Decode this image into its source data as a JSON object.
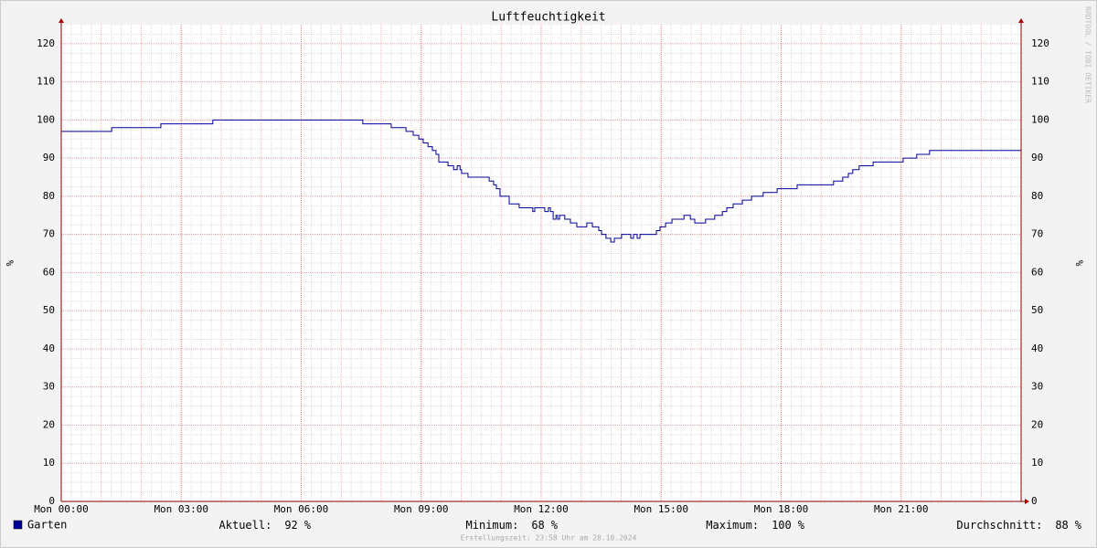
{
  "chart_data": {
    "type": "line",
    "title": "Luftfeuchtigkeit",
    "ylabel": "%",
    "step": true,
    "x": [
      0,
      1.26,
      2.49,
      3.79,
      7.54,
      8.25,
      8.62,
      8.8,
      8.94,
      9.05,
      9.17,
      9.28,
      9.37,
      9.44,
      9.67,
      9.81,
      9.9,
      9.97,
      10.01,
      10.17,
      10.7,
      10.81,
      10.88,
      10.97,
      11.2,
      11.45,
      11.79,
      11.84,
      12.09,
      12.18,
      12.23,
      12.3,
      12.37,
      12.41,
      12.46,
      12.59,
      12.73,
      12.89,
      13.14,
      13.28,
      13.44,
      13.51,
      13.62,
      13.74,
      13.83,
      14.01,
      14.24,
      14.31,
      14.4,
      14.47,
      14.88,
      14.97,
      15.11,
      15.27,
      15.57,
      15.73,
      15.84,
      16.11,
      16.34,
      16.53,
      16.64,
      16.8,
      17.03,
      17.26,
      17.55,
      17.9,
      18.4,
      19.31,
      19.54,
      19.68,
      19.79,
      19.95,
      20.3,
      21.05,
      21.39,
      21.71,
      24
    ],
    "series": [
      {
        "name": "Garten",
        "color": "#000099",
        "values": [
          97,
          98,
          99,
          100,
          99,
          98,
          97,
          96,
          95,
          94,
          93,
          92,
          91,
          89,
          88,
          87,
          88,
          87,
          86,
          85,
          84,
          83,
          82,
          80,
          78,
          77,
          76,
          77,
          76,
          77,
          76,
          74,
          75,
          74,
          75,
          74,
          73,
          72,
          73,
          72,
          71,
          70,
          69,
          68,
          69,
          70,
          69,
          70,
          69,
          70,
          71,
          72,
          73,
          74,
          75,
          74,
          73,
          74,
          75,
          76,
          77,
          78,
          79,
          80,
          81,
          82,
          83,
          84,
          85,
          86,
          87,
          88,
          89,
          90,
          91,
          92,
          92
        ]
      }
    ],
    "xlim": [
      0,
      24
    ],
    "xticks": [
      {
        "value": 0,
        "label": "Mon 00:00"
      },
      {
        "value": 3,
        "label": "Mon 03:00"
      },
      {
        "value": 6,
        "label": "Mon 06:00"
      },
      {
        "value": 9,
        "label": "Mon 09:00"
      },
      {
        "value": 12,
        "label": "Mon 12:00"
      },
      {
        "value": 15,
        "label": "Mon 15:00"
      },
      {
        "value": 18,
        "label": "Mon 18:00"
      },
      {
        "value": 21,
        "label": "Mon 21:00"
      }
    ],
    "ylim": [
      0,
      125
    ],
    "yticks": [
      0,
      10,
      20,
      30,
      40,
      50,
      60,
      70,
      80,
      90,
      100,
      110,
      120
    ],
    "grid": true,
    "stats": [
      {
        "label": "Aktuell:",
        "value": 92,
        "unit": "%"
      },
      {
        "label": "Minimum:",
        "value": 68,
        "unit": "%"
      },
      {
        "label": "Maximum:",
        "value": 100,
        "unit": "%"
      },
      {
        "label": "Durchschnitt:",
        "value": 88,
        "unit": "%"
      }
    ],
    "footer": "Erstellungszeit: 23:58 Uhr am 28.10.2024",
    "watermark": "RRDTOOL / TOBI OETIKER"
  }
}
